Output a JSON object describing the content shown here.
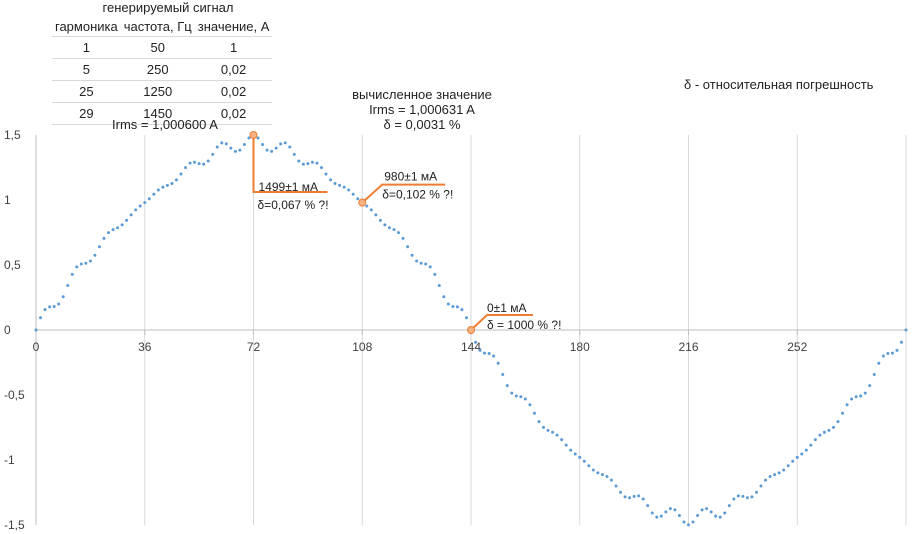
{
  "table": {
    "title": "генерируемый сигнал",
    "headers": [
      "гармоника",
      "частота, Гц",
      "значение, А"
    ],
    "rows": [
      [
        "1",
        "50",
        "1"
      ],
      [
        "5",
        "250",
        "0,02"
      ],
      [
        "25",
        "1250",
        "0,02"
      ],
      [
        "29",
        "1450",
        "0,02"
      ]
    ]
  },
  "annotations": {
    "irms_gen": "Irms = 1,000600 A",
    "calc_title": "вычисленное значение",
    "calc_irms": "Irms = 1,000631 A",
    "calc_delta": "δ = 0,0031 %",
    "legend_delta": "δ - относительная погрешность"
  },
  "callouts": [
    {
      "x": 72,
      "y": 1.5,
      "line1": "1499±1 мА",
      "line2": "δ=0,067 % ?!"
    },
    {
      "x": 108,
      "y": 0.98,
      "line1": "980±1 мА",
      "line2": "δ=0,102 % ?!"
    },
    {
      "x": 144,
      "y": 0,
      "line1": "0±1 мА",
      "line2": "δ = 1000 % ?!"
    }
  ],
  "colors": {
    "series": "#5b9bd5",
    "callout": "#ed7d31",
    "grid": "#d9d9d9",
    "axis": "#bfbfbf",
    "text": "#404040"
  },
  "chart_data": {
    "type": "scatter",
    "x_ticks": [
      0,
      36,
      72,
      108,
      144,
      180,
      216,
      252
    ],
    "y_tick_labels": [
      "1,5",
      "1",
      "0,5",
      "0",
      "-0,5",
      "-1",
      "-1,5"
    ],
    "y_ticks": [
      1.5,
      1,
      0.5,
      0,
      -0.5,
      -1,
      -1.5
    ],
    "xlim": [
      0,
      288
    ],
    "ylim": [
      -1.5,
      1.5
    ],
    "grid": "vertical",
    "series": [
      {
        "components": [
          {
            "harmonic": 1,
            "amplitude": 1
          },
          {
            "harmonic": 5,
            "amplitude": 0.02
          },
          {
            "harmonic": 25,
            "amplitude": 0.02
          },
          {
            "harmonic": 29,
            "amplitude": 0.02
          }
        ],
        "sample_step": 1.5,
        "base_period": 288,
        "amplitude_scale": 1.414
      }
    ]
  }
}
